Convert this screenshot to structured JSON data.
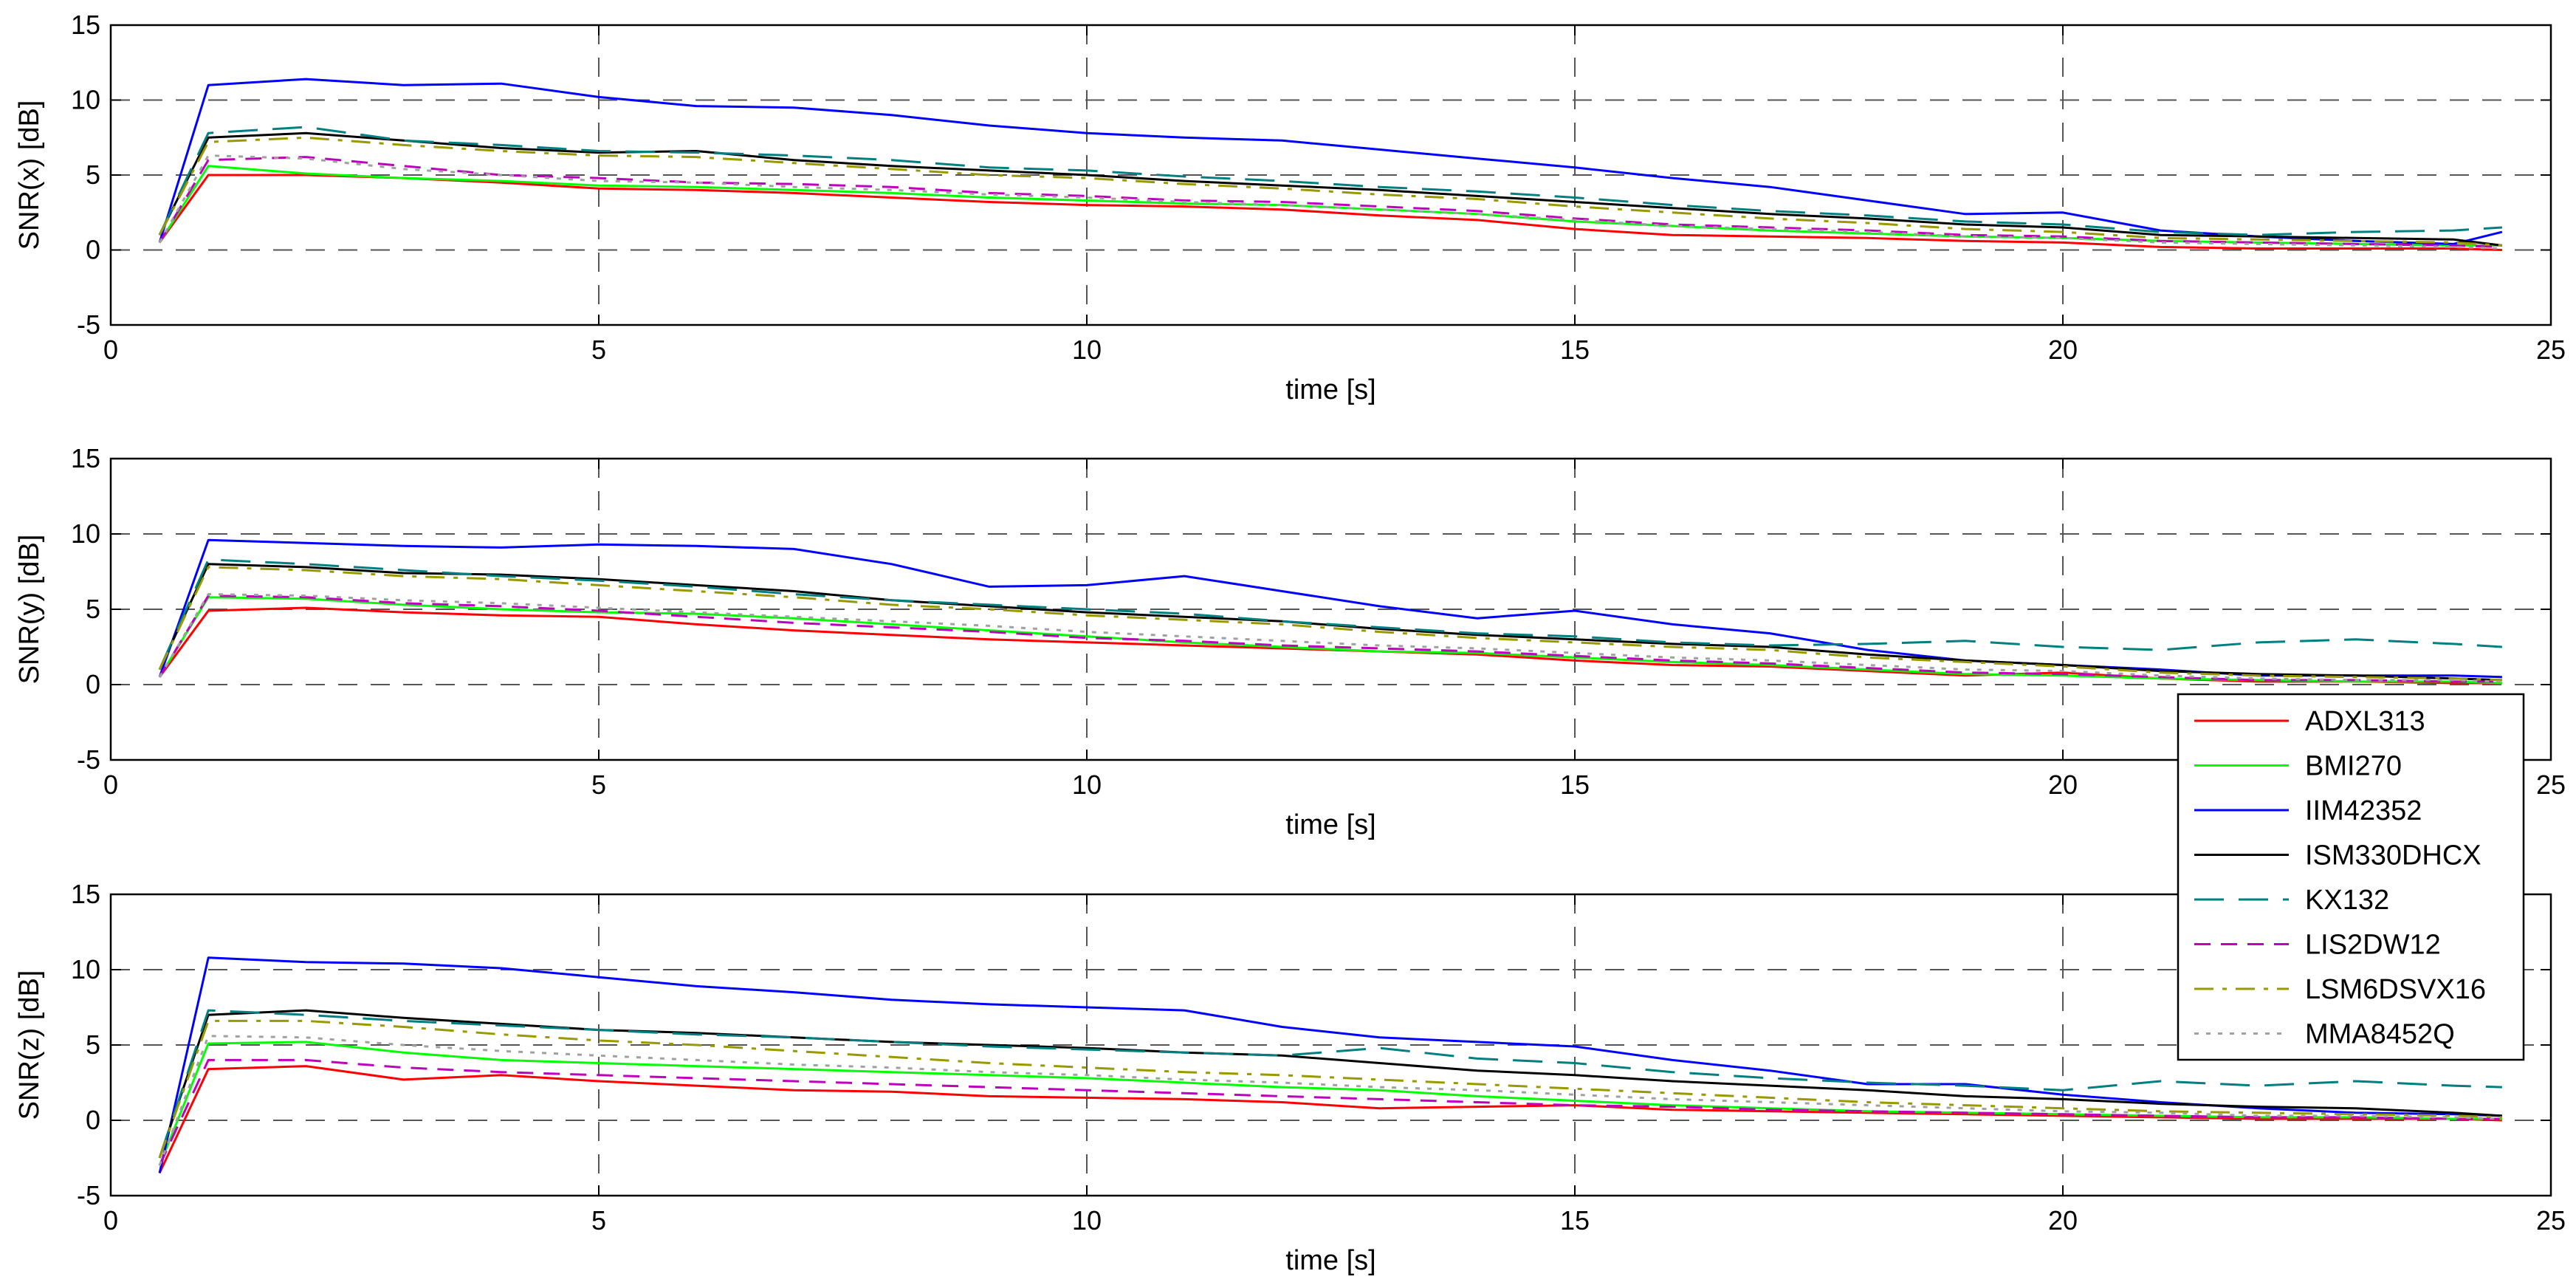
{
  "chart_data": [
    {
      "type": "line",
      "xlabel": "time [s]",
      "ylabel": "SNR(x) [dB]",
      "xlim": [
        0,
        25
      ],
      "ylim": [
        -5,
        15
      ],
      "xticks": [
        0,
        5,
        10,
        15,
        20,
        25
      ],
      "yticks": [
        -5,
        0,
        5,
        10,
        15
      ],
      "x": [
        0.5,
        1,
        2,
        3,
        4,
        5,
        6,
        7,
        8,
        9,
        10,
        11,
        12,
        13,
        14,
        15,
        16,
        17,
        18,
        19,
        20,
        21,
        22,
        23,
        24,
        24.5
      ],
      "series": [
        {
          "name": "ADXL313",
          "color": "#ff0000",
          "dash": "solid",
          "values": [
            0.5,
            5.0,
            5.0,
            4.8,
            4.5,
            4.1,
            4.0,
            3.8,
            3.5,
            3.2,
            3.0,
            2.9,
            2.7,
            2.3,
            2.0,
            1.4,
            1.0,
            0.9,
            0.8,
            0.6,
            0.5,
            0.2,
            0.1,
            0.1,
            0.1,
            0.0
          ]
        },
        {
          "name": "BMI270",
          "color": "#00ff00",
          "dash": "solid",
          "values": [
            0.5,
            5.6,
            5.1,
            4.8,
            4.6,
            4.3,
            4.2,
            4.0,
            3.8,
            3.5,
            3.3,
            3.1,
            3.0,
            2.7,
            2.4,
            1.9,
            1.6,
            1.3,
            1.1,
            0.9,
            0.8,
            0.6,
            0.5,
            0.4,
            0.3,
            0.3
          ]
        },
        {
          "name": "IIM42352",
          "color": "#0000ff",
          "dash": "solid",
          "values": [
            0.5,
            11.0,
            11.4,
            11.0,
            11.1,
            10.2,
            9.6,
            9.5,
            9.0,
            8.3,
            7.8,
            7.5,
            7.3,
            6.7,
            6.1,
            5.5,
            4.8,
            4.2,
            3.3,
            2.4,
            2.5,
            1.3,
            0.9,
            0.6,
            0.4,
            1.2
          ]
        },
        {
          "name": "ISM330DHCX",
          "color": "#000000",
          "dash": "solid",
          "values": [
            1.0,
            7.5,
            7.8,
            7.3,
            6.8,
            6.5,
            6.6,
            6.0,
            5.6,
            5.3,
            5.0,
            4.6,
            4.3,
            4.0,
            3.6,
            3.2,
            2.8,
            2.4,
            2.1,
            1.7,
            1.5,
            1.0,
            0.9,
            0.8,
            0.7,
            0.3
          ]
        },
        {
          "name": "KX132",
          "color": "#008080",
          "dash": "longdash",
          "values": [
            1.0,
            7.8,
            8.2,
            7.3,
            7.0,
            6.6,
            6.5,
            6.3,
            6.0,
            5.5,
            5.3,
            4.9,
            4.6,
            4.2,
            3.9,
            3.5,
            3.0,
            2.6,
            2.3,
            1.9,
            1.7,
            1.2,
            1.0,
            1.2,
            1.3,
            1.5
          ]
        },
        {
          "name": "LIS2DW12",
          "color": "#bf00bf",
          "dash": "dash",
          "values": [
            0.5,
            6.0,
            6.2,
            5.6,
            5.0,
            4.8,
            4.5,
            4.4,
            4.2,
            3.8,
            3.6,
            3.3,
            3.2,
            2.9,
            2.6,
            2.1,
            1.7,
            1.5,
            1.3,
            1.0,
            0.9,
            0.6,
            0.5,
            0.4,
            0.3,
            0.2
          ]
        },
        {
          "name": "LSM6DSVX16",
          "color": "#999900",
          "dash": "dashdot",
          "values": [
            1.0,
            7.2,
            7.5,
            7.0,
            6.6,
            6.3,
            6.2,
            5.8,
            5.4,
            5.0,
            4.8,
            4.4,
            4.1,
            3.7,
            3.4,
            2.9,
            2.5,
            2.1,
            1.8,
            1.4,
            1.2,
            0.8,
            0.7,
            0.6,
            0.5,
            0.3
          ]
        },
        {
          "name": "MMA8452Q",
          "color": "#a0a0a0",
          "dash": "dot",
          "values": [
            0.5,
            6.3,
            6.1,
            5.4,
            5.0,
            4.6,
            4.5,
            4.2,
            4.0,
            3.7,
            3.5,
            3.2,
            3.0,
            2.7,
            2.4,
            2.0,
            1.6,
            1.4,
            1.2,
            0.9,
            0.8,
            0.5,
            0.4,
            0.3,
            0.2,
            0.1
          ]
        }
      ]
    },
    {
      "type": "line",
      "xlabel": "time [s]",
      "ylabel": "SNR(y) [dB]",
      "xlim": [
        0,
        25
      ],
      "ylim": [
        -5,
        15
      ],
      "xticks": [
        0,
        5,
        10,
        15,
        20,
        25
      ],
      "yticks": [
        -5,
        0,
        5,
        10,
        15
      ],
      "x": [
        0.5,
        1,
        2,
        3,
        4,
        5,
        6,
        7,
        8,
        9,
        10,
        11,
        12,
        13,
        14,
        15,
        16,
        17,
        18,
        19,
        20,
        21,
        22,
        23,
        24,
        24.5
      ],
      "series": [
        {
          "name": "ADXL313",
          "color": "#ff0000",
          "dash": "solid",
          "values": [
            0.5,
            4.9,
            5.1,
            4.8,
            4.6,
            4.5,
            4.0,
            3.6,
            3.3,
            3.0,
            2.8,
            2.6,
            2.4,
            2.2,
            2.0,
            1.6,
            1.3,
            1.2,
            0.9,
            0.6,
            0.8,
            0.4,
            0.2,
            0.2,
            0.1,
            0.1
          ]
        },
        {
          "name": "BMI270",
          "color": "#00ff00",
          "dash": "solid",
          "values": [
            0.5,
            5.8,
            5.7,
            5.3,
            5.0,
            4.8,
            4.7,
            4.4,
            4.0,
            3.6,
            3.2,
            2.8,
            2.5,
            2.2,
            2.1,
            1.8,
            1.5,
            1.3,
            1.0,
            0.7,
            0.6,
            0.4,
            0.3,
            0.2,
            0.2,
            0.1
          ]
        },
        {
          "name": "IIM42352",
          "color": "#0000ff",
          "dash": "solid",
          "values": [
            0.5,
            9.6,
            9.4,
            9.2,
            9.1,
            9.3,
            9.2,
            9.0,
            8.0,
            6.5,
            6.6,
            7.2,
            6.2,
            5.2,
            4.4,
            4.9,
            4.0,
            3.4,
            2.3,
            1.6,
            1.3,
            1.0,
            0.6,
            0.6,
            0.6,
            0.5
          ]
        },
        {
          "name": "ISM330DHCX",
          "color": "#000000",
          "dash": "solid",
          "values": [
            1.0,
            8.0,
            7.8,
            7.4,
            7.3,
            7.0,
            6.6,
            6.2,
            5.6,
            5.2,
            4.8,
            4.5,
            4.2,
            3.7,
            3.3,
            3.0,
            2.7,
            2.5,
            2.0,
            1.6,
            1.3,
            0.9,
            0.7,
            0.6,
            0.4,
            0.3
          ]
        },
        {
          "name": "KX132",
          "color": "#008080",
          "dash": "longdash",
          "values": [
            1.0,
            8.3,
            8.0,
            7.6,
            7.2,
            6.9,
            6.5,
            6.0,
            5.6,
            5.3,
            5.0,
            4.7,
            4.2,
            3.8,
            3.4,
            3.2,
            2.8,
            2.6,
            2.7,
            2.9,
            2.5,
            2.3,
            2.8,
            3.0,
            2.7,
            2.5
          ]
        },
        {
          "name": "LIS2DW12",
          "color": "#bf00bf",
          "dash": "dash",
          "values": [
            0.5,
            5.9,
            5.8,
            5.4,
            5.2,
            4.9,
            4.5,
            4.1,
            3.8,
            3.5,
            3.1,
            2.9,
            2.6,
            2.4,
            2.2,
            1.9,
            1.6,
            1.4,
            1.1,
            0.8,
            0.7,
            0.5,
            0.3,
            0.3,
            0.2,
            0.2
          ]
        },
        {
          "name": "LSM6DSVX16",
          "color": "#999900",
          "dash": "dashdot",
          "values": [
            1.0,
            7.8,
            7.6,
            7.2,
            7.0,
            6.6,
            6.2,
            5.8,
            5.3,
            5.0,
            4.6,
            4.3,
            4.0,
            3.5,
            3.1,
            2.8,
            2.5,
            2.3,
            1.8,
            1.5,
            1.2,
            0.8,
            0.6,
            0.5,
            0.4,
            0.3
          ]
        },
        {
          "name": "MMA8452Q",
          "color": "#a0a0a0",
          "dash": "dot",
          "values": [
            0.5,
            6.0,
            5.9,
            5.6,
            5.4,
            5.1,
            4.8,
            4.5,
            4.2,
            3.9,
            3.5,
            3.2,
            2.9,
            2.6,
            2.4,
            2.1,
            1.8,
            1.6,
            1.3,
            1.0,
            0.9,
            0.6,
            0.4,
            0.3,
            0.3,
            0.2
          ]
        }
      ]
    },
    {
      "type": "line",
      "xlabel": "time [s]",
      "ylabel": "SNR(z) [dB]",
      "xlim": [
        0,
        25
      ],
      "ylim": [
        -5,
        15
      ],
      "xticks": [
        0,
        5,
        10,
        15,
        20,
        25
      ],
      "yticks": [
        -5,
        0,
        5,
        10,
        15
      ],
      "x": [
        0.5,
        1,
        2,
        3,
        4,
        5,
        6,
        7,
        8,
        9,
        10,
        11,
        12,
        13,
        14,
        15,
        16,
        17,
        18,
        19,
        20,
        21,
        22,
        23,
        24,
        24.5
      ],
      "series": [
        {
          "name": "ADXL313",
          "color": "#ff0000",
          "dash": "solid",
          "values": [
            -3.5,
            3.4,
            3.6,
            2.7,
            3.0,
            2.6,
            2.3,
            2.0,
            1.9,
            1.6,
            1.5,
            1.4,
            1.2,
            0.8,
            0.9,
            1.0,
            0.7,
            0.6,
            0.5,
            0.4,
            0.3,
            0.2,
            0.1,
            0.1,
            0.1,
            0.0
          ]
        },
        {
          "name": "BMI270",
          "color": "#00ff00",
          "dash": "solid",
          "values": [
            -3.0,
            5.1,
            5.2,
            4.5,
            4.0,
            3.8,
            3.6,
            3.4,
            3.2,
            3.0,
            2.8,
            2.5,
            2.2,
            2.0,
            1.6,
            1.3,
            1.0,
            0.8,
            0.6,
            0.5,
            0.4,
            0.3,
            0.2,
            0.2,
            0.1,
            0.1
          ]
        },
        {
          "name": "IIM42352",
          "color": "#0000ff",
          "dash": "solid",
          "values": [
            -3.5,
            10.8,
            10.5,
            10.4,
            10.1,
            9.5,
            8.9,
            8.5,
            8.0,
            7.7,
            7.5,
            7.3,
            6.2,
            5.5,
            5.2,
            4.9,
            4.0,
            3.3,
            2.4,
            2.4,
            1.7,
            1.2,
            0.8,
            0.5,
            0.4,
            0.3
          ]
        },
        {
          "name": "ISM330DHCX",
          "color": "#000000",
          "dash": "solid",
          "values": [
            -2.5,
            7.0,
            7.3,
            6.8,
            6.4,
            6.0,
            5.8,
            5.5,
            5.2,
            5.0,
            4.8,
            4.5,
            4.3,
            3.8,
            3.3,
            3.0,
            2.6,
            2.3,
            2.0,
            1.6,
            1.4,
            1.1,
            0.9,
            0.8,
            0.5,
            0.3
          ]
        },
        {
          "name": "KX132",
          "color": "#008080",
          "dash": "longdash",
          "values": [
            -2.5,
            7.3,
            7.0,
            6.6,
            6.3,
            6.0,
            5.7,
            5.5,
            5.2,
            4.9,
            4.7,
            4.5,
            4.3,
            4.8,
            4.1,
            3.8,
            3.2,
            2.8,
            2.5,
            2.3,
            2.0,
            2.6,
            2.3,
            2.6,
            2.3,
            2.2
          ]
        },
        {
          "name": "LIS2DW12",
          "color": "#bf00bf",
          "dash": "dash",
          "values": [
            -3.0,
            4.0,
            4.0,
            3.5,
            3.2,
            3.0,
            2.8,
            2.6,
            2.4,
            2.2,
            2.0,
            1.8,
            1.6,
            1.4,
            1.2,
            1.0,
            0.9,
            0.7,
            0.6,
            0.5,
            0.4,
            0.3,
            0.2,
            0.2,
            0.1,
            0.1
          ]
        },
        {
          "name": "LSM6DSVX16",
          "color": "#999900",
          "dash": "dashdot",
          "values": [
            -2.5,
            6.6,
            6.6,
            6.2,
            5.7,
            5.3,
            5.0,
            4.6,
            4.2,
            3.8,
            3.5,
            3.2,
            3.0,
            2.7,
            2.4,
            2.1,
            1.8,
            1.5,
            1.2,
            1.0,
            0.8,
            0.6,
            0.5,
            0.4,
            0.3,
            0.2
          ]
        },
        {
          "name": "MMA8452Q",
          "color": "#a0a0a0",
          "dash": "dot",
          "values": [
            -3.0,
            5.6,
            5.5,
            5.0,
            4.6,
            4.3,
            4.0,
            3.7,
            3.5,
            3.2,
            3.0,
            2.7,
            2.5,
            2.2,
            2.0,
            1.7,
            1.4,
            1.2,
            1.0,
            0.8,
            0.6,
            0.5,
            0.3,
            0.3,
            0.2,
            0.1
          ]
        }
      ]
    }
  ],
  "legend": {
    "location": "right, spanning lower two panels",
    "entries": [
      "ADXL313",
      "BMI270",
      "IIM42352",
      "ISM330DHCX",
      "KX132",
      "LIS2DW12",
      "LSM6DSVX16",
      "MMA8452Q"
    ]
  }
}
